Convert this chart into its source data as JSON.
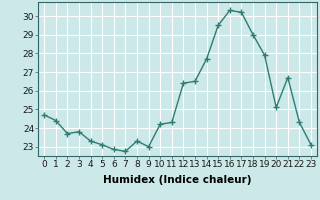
{
  "x": [
    0,
    1,
    2,
    3,
    4,
    5,
    6,
    7,
    8,
    9,
    10,
    11,
    12,
    13,
    14,
    15,
    16,
    17,
    18,
    19,
    20,
    21,
    22,
    23
  ],
  "y": [
    24.7,
    24.4,
    23.7,
    23.8,
    23.3,
    23.1,
    22.85,
    22.75,
    23.3,
    23.0,
    24.2,
    24.3,
    26.4,
    26.5,
    27.7,
    29.5,
    30.3,
    30.2,
    29.0,
    27.9,
    25.1,
    26.7,
    24.3,
    23.1
  ],
  "line_color": "#2e7d6e",
  "marker": "+",
  "marker_size": 4,
  "bg_color": "#cce8e8",
  "grid_color": "#ffffff",
  "grid_minor_color": "#dde8e8",
  "xlabel": "Humidex (Indice chaleur)",
  "ylim": [
    22.5,
    30.75
  ],
  "xlim": [
    -0.5,
    23.5
  ],
  "yticks": [
    23,
    24,
    25,
    26,
    27,
    28,
    29,
    30
  ],
  "xticks": [
    0,
    1,
    2,
    3,
    4,
    5,
    6,
    7,
    8,
    9,
    10,
    11,
    12,
    13,
    14,
    15,
    16,
    17,
    18,
    19,
    20,
    21,
    22,
    23
  ],
  "tick_fontsize": 6.5,
  "xlabel_fontsize": 7.5,
  "line_width": 1.0
}
